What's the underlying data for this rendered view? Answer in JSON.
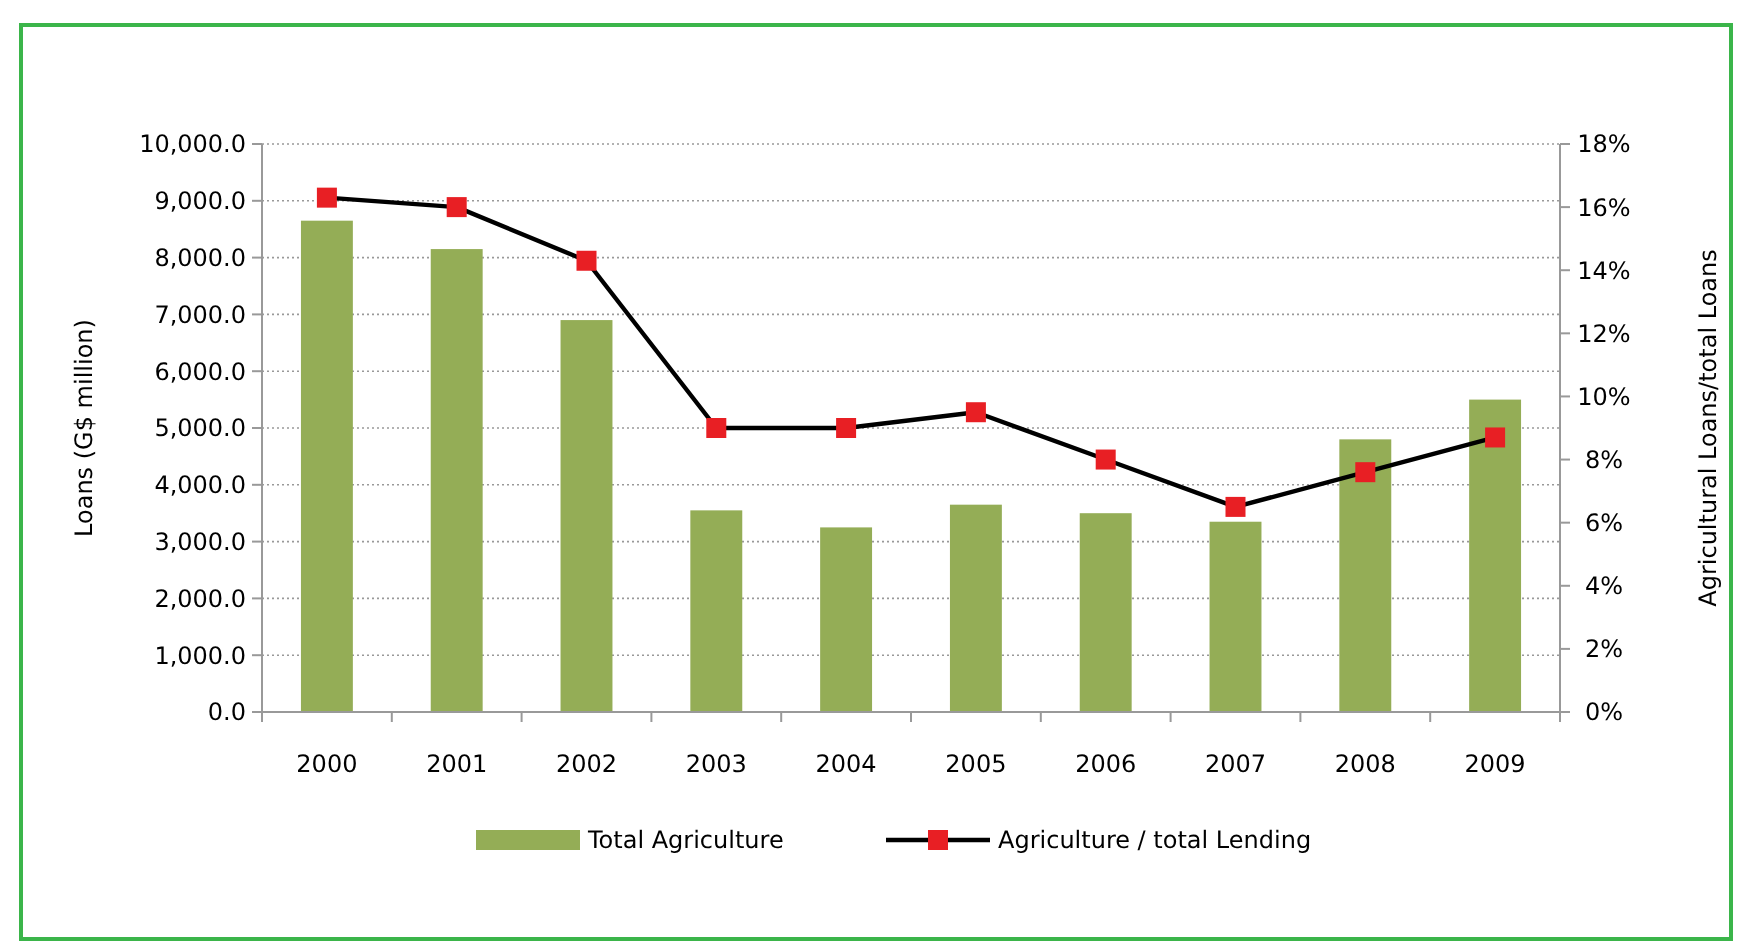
{
  "chart_data": {
    "type": "bar",
    "categories": [
      "2000",
      "2001",
      "2002",
      "2003",
      "2004",
      "2005",
      "2006",
      "2007",
      "2008",
      "2009"
    ],
    "series": [
      {
        "name": "Total Agriculture",
        "color": "#94ad56",
        "values": [
          8650,
          8150,
          6900,
          3550,
          3250,
          3650,
          3500,
          3350,
          4800,
          5500
        ]
      },
      {
        "name": "Agriculture / total Lending",
        "type": "line",
        "axis": "y2",
        "color": "#000000",
        "marker": "square",
        "values": [
          16.3,
          16.0,
          14.3,
          9.0,
          9.0,
          9.5,
          8.0,
          6.5,
          7.6,
          8.7
        ]
      }
    ],
    "ylabel": "Loans (G$ million)",
    "y2label": "Agricultural Loans/total Loans",
    "ylim": [
      0,
      10000
    ],
    "yticks": [
      {
        "value": 0,
        "label": "0.0"
      },
      {
        "value": 1000,
        "label": "1,000.0"
      },
      {
        "value": 2000,
        "label": "2,000.0"
      },
      {
        "value": 3000,
        "label": "3,000.0"
      },
      {
        "value": 4000,
        "label": "4,000.0"
      },
      {
        "value": 5000,
        "label": "5,000.0"
      },
      {
        "value": 6000,
        "label": "6,000.0"
      },
      {
        "value": 7000,
        "label": "7,000.0"
      },
      {
        "value": 8000,
        "label": "8,000.0"
      },
      {
        "value": 9000,
        "label": "9,000.0"
      },
      {
        "value": 10000,
        "label": "10,000.0"
      }
    ],
    "y2lim": [
      0,
      18
    ],
    "y2ticks": [
      {
        "value": 0,
        "label": "0%"
      },
      {
        "value": 2,
        "label": "2%"
      },
      {
        "value": 4,
        "label": "4%"
      },
      {
        "value": 6,
        "label": "6%"
      },
      {
        "value": 8,
        "label": "8%"
      },
      {
        "value": 10,
        "label": "10%"
      },
      {
        "value": 12,
        "label": "12%"
      },
      {
        "value": 14,
        "label": "14%"
      },
      {
        "value": 16,
        "label": "16%"
      },
      {
        "value": 18,
        "label": "18%"
      }
    ],
    "grid": "y",
    "legend": "bottom"
  }
}
